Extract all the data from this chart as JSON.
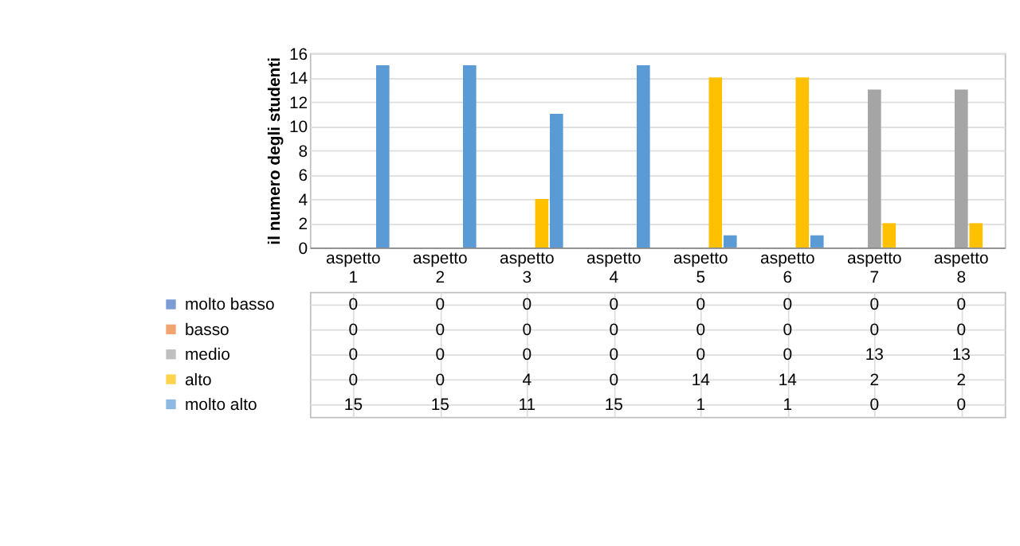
{
  "chart_data": {
    "type": "bar",
    "ylabel": "il numero degli studenti",
    "categories": [
      "aspetto 1",
      "aspetto 2",
      "aspetto 3",
      "aspetto 4",
      "aspetto 5",
      "aspetto 6",
      "aspetto 7",
      "aspetto 8"
    ],
    "series": [
      {
        "name": "molto basso",
        "color": "#4472c4",
        "values": [
          0,
          0,
          0,
          0,
          0,
          0,
          0,
          0
        ]
      },
      {
        "name": "basso",
        "color": "#ed7d31",
        "values": [
          0,
          0,
          0,
          0,
          0,
          0,
          0,
          0
        ]
      },
      {
        "name": "medio",
        "color": "#a5a5a5",
        "values": [
          0,
          0,
          0,
          0,
          0,
          0,
          13,
          13
        ]
      },
      {
        "name": "alto",
        "color": "#ffc000",
        "values": [
          0,
          0,
          4,
          0,
          14,
          14,
          2,
          2
        ]
      },
      {
        "name": "molto alto",
        "color": "#5b9bd5",
        "values": [
          15,
          15,
          11,
          15,
          1,
          1,
          0,
          0
        ]
      }
    ],
    "ylim": [
      0,
      16
    ],
    "yticks": [
      0,
      2,
      4,
      6,
      8,
      10,
      12,
      14,
      16
    ],
    "grid": "y",
    "data_labels": true,
    "legend": "bottom"
  }
}
